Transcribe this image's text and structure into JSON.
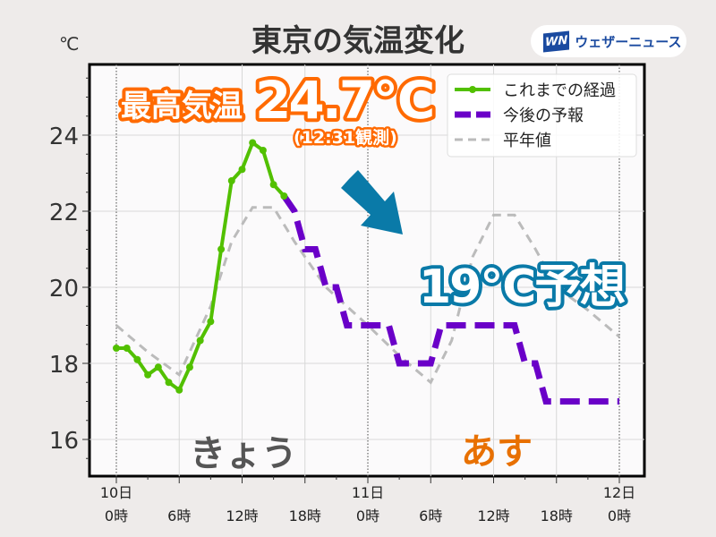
{
  "title": "東京の気温変化",
  "brand": "ウェザーニュース",
  "brand_mark": "WN",
  "chart_data": {
    "type": "line",
    "ylabel": "℃",
    "ylim": [
      15,
      26
    ],
    "yticks": [
      16,
      18,
      20,
      22,
      24
    ],
    "xlim": [
      0,
      48
    ],
    "xticks": [
      {
        "h": 0,
        "label": [
          "10日",
          "0時"
        ]
      },
      {
        "h": 6,
        "label": [
          "",
          "6時"
        ]
      },
      {
        "h": 12,
        "label": [
          "",
          "12時"
        ]
      },
      {
        "h": 18,
        "label": [
          "",
          "18時"
        ]
      },
      {
        "h": 24,
        "label": [
          "11日",
          "0時"
        ]
      },
      {
        "h": 30,
        "label": [
          "",
          "6時"
        ]
      },
      {
        "h": 36,
        "label": [
          "",
          "12時"
        ]
      },
      {
        "h": 42,
        "label": [
          "",
          "18時"
        ]
      },
      {
        "h": 48,
        "label": [
          "12日",
          "0時"
        ]
      }
    ],
    "grid": true,
    "legend_position": "top-right",
    "series": [
      {
        "name": "これまでの経過",
        "color": "#52c000",
        "style": "solid-markers",
        "x": [
          0,
          1,
          2,
          3,
          4,
          5,
          6,
          7,
          8,
          9,
          10,
          11,
          12,
          13,
          14,
          15,
          16
        ],
        "y": [
          18.4,
          18.4,
          18.1,
          17.7,
          17.9,
          17.5,
          17.3,
          17.9,
          18.6,
          19.1,
          21.0,
          22.8,
          23.1,
          23.8,
          23.6,
          22.7,
          22.4
        ]
      },
      {
        "name": "今後の予報",
        "color": "#6a00c8",
        "style": "dashed-thick",
        "x": [
          16,
          17,
          18,
          19,
          20,
          21,
          22,
          23,
          24,
          25,
          26,
          27,
          28,
          29,
          30,
          31,
          32,
          33,
          34,
          35,
          36,
          37,
          38,
          39,
          40,
          41,
          42,
          43,
          44,
          45,
          46,
          47,
          48
        ],
        "y": [
          22.4,
          22,
          21,
          21,
          20,
          20,
          19,
          19,
          19,
          19,
          19,
          18,
          18,
          18,
          18,
          19,
          19,
          19,
          19,
          19,
          19,
          19,
          19,
          18,
          18,
          17,
          17,
          17,
          17,
          17,
          17,
          17,
          17
        ]
      },
      {
        "name": "平年値",
        "color": "#bbbbbb",
        "style": "dashed",
        "x": [
          0,
          3,
          6,
          9,
          11,
          13,
          15,
          17,
          20,
          24,
          27,
          30,
          32,
          34,
          36,
          38,
          40,
          42,
          45,
          48
        ],
        "y": [
          19,
          18.3,
          17.7,
          19.5,
          21.2,
          22.1,
          22.1,
          21.2,
          20,
          19,
          18.2,
          17.5,
          18.6,
          20.8,
          21.9,
          21.9,
          21,
          20,
          19.4,
          18.7
        ]
      }
    ],
    "annotations": {
      "max_label": "最高気温",
      "max_value": "24.7℃",
      "max_time": "(12:31観測)",
      "forecast": "19℃予想",
      "today": "きょう",
      "tomorrow": "あす"
    }
  }
}
